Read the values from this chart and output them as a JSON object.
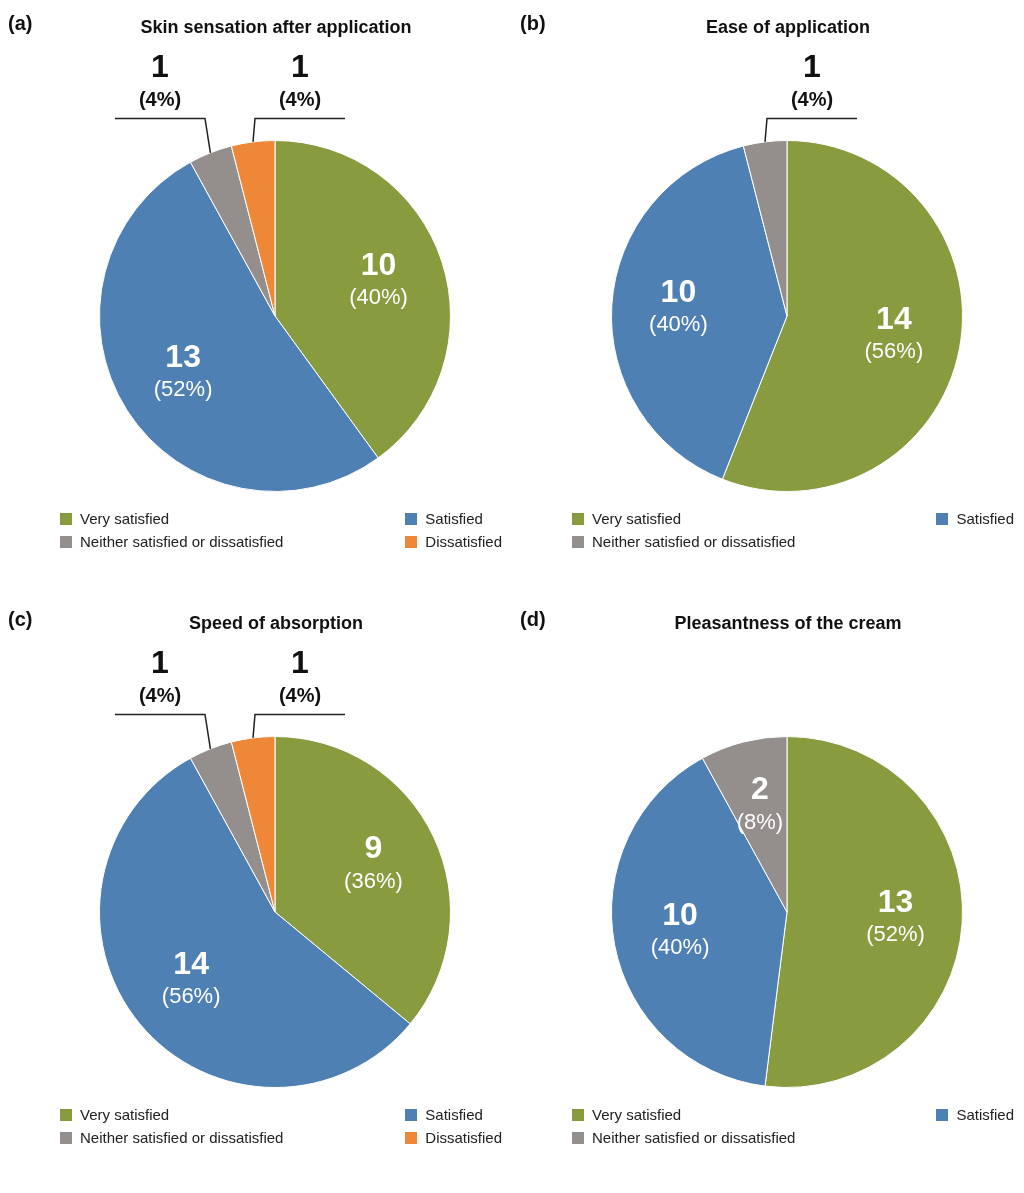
{
  "chart_data": [
    {
      "type": "pie",
      "title": "Skin sensation after application",
      "annotations": [
        "(a)"
      ],
      "categories": [
        "Very satisfied",
        "Satisfied",
        "Neither satisfied or dissatisfied",
        "Dissatisfied"
      ],
      "values": [
        10,
        13,
        1,
        1
      ],
      "colors": [
        "#889b3f",
        "#4f80b3",
        "#948f8c",
        "#ee8838"
      ],
      "value_labels": [
        "10 (40%)",
        "13 (52%)",
        "1 (4%)",
        "1 (4%)"
      ],
      "legend": "bottom"
    },
    {
      "type": "pie",
      "title": "Ease of application",
      "annotations": [
        "(b)"
      ],
      "categories": [
        "Very satisfied",
        "Satisfied",
        "Neither satisfied or dissatisfied"
      ],
      "values": [
        14,
        10,
        1
      ],
      "colors": [
        "#889b3f",
        "#4f80b3",
        "#948f8c"
      ],
      "value_labels": [
        "14 (56%)",
        "10 (40%)",
        "1 (4%)"
      ],
      "legend": "bottom"
    },
    {
      "type": "pie",
      "title": "Speed of absorption",
      "annotations": [
        "(c)"
      ],
      "categories": [
        "Very satisfied",
        "Satisfied",
        "Neither satisfied or dissatisfied",
        "Dissatisfied"
      ],
      "values": [
        9,
        14,
        1,
        1
      ],
      "colors": [
        "#889b3f",
        "#4f80b3",
        "#948f8c",
        "#ee8838"
      ],
      "value_labels": [
        "9 (36%)",
        "14 (56%)",
        "1 (4%)",
        "1 (4%)"
      ],
      "legend": "bottom"
    },
    {
      "type": "pie",
      "title": "Pleasantness of the cream",
      "annotations": [
        "(d)"
      ],
      "categories": [
        "Very satisfied",
        "Satisfied",
        "Neither satisfied or dissatisfied"
      ],
      "values": [
        13,
        10,
        2
      ],
      "colors": [
        "#889b3f",
        "#4f80b3",
        "#948f8c"
      ],
      "value_labels": [
        "13 (52%)",
        "10 (40%)",
        "2 (8%)"
      ],
      "legend": "bottom"
    }
  ]
}
